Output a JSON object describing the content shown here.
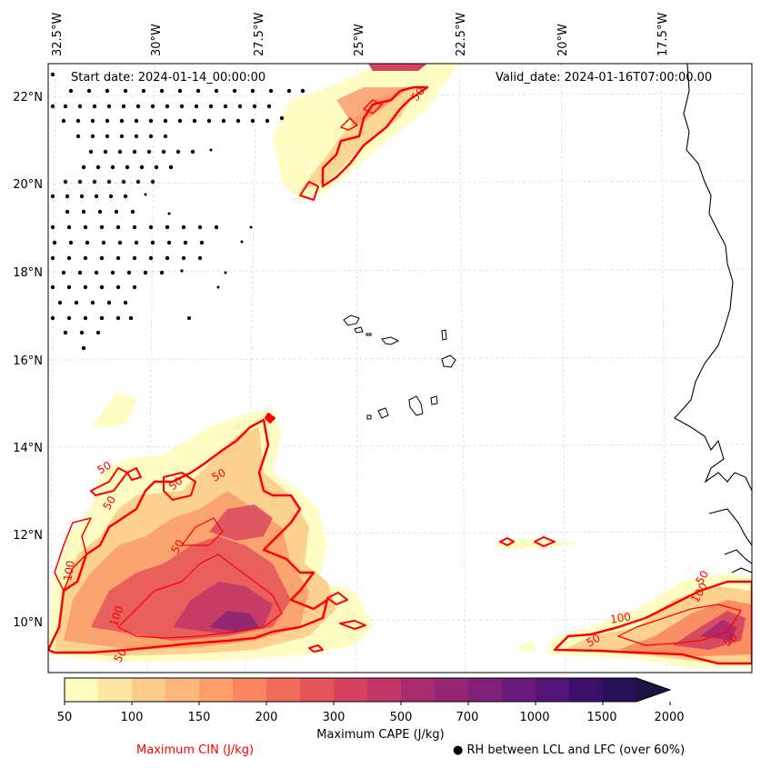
{
  "header": {
    "start_date": "Start date: 2024-01-14_00:00:00",
    "valid_date": "Valid_date: 2024-01-16T07:00:00.00"
  },
  "axes": {
    "lon_labels": [
      "32.5°W",
      "30°W",
      "27.5°W",
      "25°W",
      "22.5°W",
      "20°W",
      "17.5°W"
    ],
    "lat_labels": [
      "22°N",
      "20°N",
      "18°N",
      "16°N",
      "14°N",
      "12°N",
      "10°N"
    ]
  },
  "colorbar": {
    "title": "Maximum CAPE (J/kg)",
    "tick_labels": [
      "50",
      "100",
      "150",
      "200",
      "300",
      "500",
      "700",
      "1000",
      "1500",
      "2000"
    ],
    "colors": [
      "#fffdbd",
      "#fde5a3",
      "#fdcc8a",
      "#fdb67c",
      "#fc9f6b",
      "#f98660",
      "#f06b5a",
      "#e45458",
      "#d4425f",
      "#c13667",
      "#ab2c6e",
      "#952673",
      "#7f2177",
      "#6a1a7c",
      "#531678",
      "#3d0f6b",
      "#271058",
      "#1e1342"
    ]
  },
  "legend": {
    "cin_label": "Maximum CIN (J/kg)",
    "cin_color": "#ff0000",
    "rh_label": "● RH between LCL and LFC (over 60%)"
  },
  "contour_labels": [
    "50",
    "50",
    "50",
    "50",
    "50",
    "100",
    "50",
    "100",
    "50",
    "100",
    "50",
    "100",
    "50",
    "50"
  ]
}
